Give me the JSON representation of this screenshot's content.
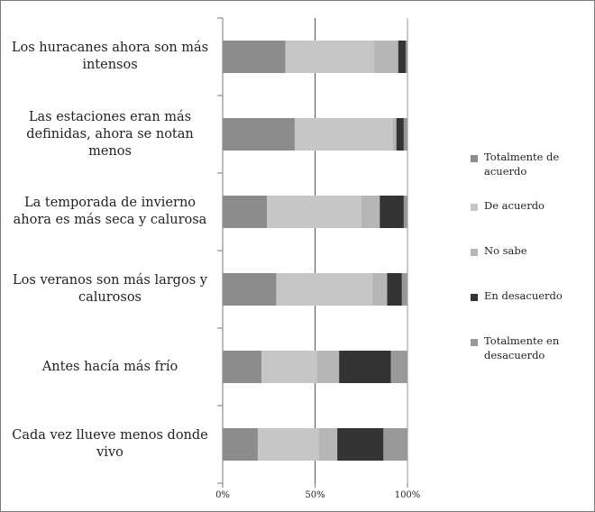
{
  "chart_data": {
    "type": "bar",
    "orientation": "horizontal",
    "stacked": true,
    "percent_stacked": true,
    "categories": [
      "Los huracanes ahora son más intensos",
      "Las estaciones eran más definidas, ahora se notan menos",
      "La temporada de invierno ahora es más seca y calurosa",
      "Los veranos son más largos y calurosos",
      "Antes hacía más frío",
      "Cada vez llueve menos donde vivo"
    ],
    "series": [
      {
        "name": "Totalmente de acuerdo",
        "color": "#8c8c8c",
        "values": [
          34,
          39,
          24,
          29,
          21,
          19
        ]
      },
      {
        "name": "De acuerdo",
        "color": "#c6c6c6",
        "values": [
          48,
          53,
          51,
          52,
          30,
          33
        ]
      },
      {
        "name": "No sabe",
        "color": "#b6b6b6",
        "values": [
          13,
          2,
          10,
          8,
          12,
          10
        ]
      },
      {
        "name": "En desacuerdo",
        "color": "#333333",
        "values": [
          4,
          4,
          13,
          8,
          28,
          25
        ]
      },
      {
        "name": "Totalmente en desacuerdo",
        "color": "#999999",
        "values": [
          1,
          2,
          2,
          3,
          9,
          13
        ]
      }
    ],
    "xlim": [
      0,
      100
    ],
    "x_ticks": [
      "0%",
      "50%",
      "100%"
    ],
    "grid": "vertical line at 50%",
    "legend_position": "right",
    "title": "",
    "xlabel": "",
    "ylabel": ""
  }
}
